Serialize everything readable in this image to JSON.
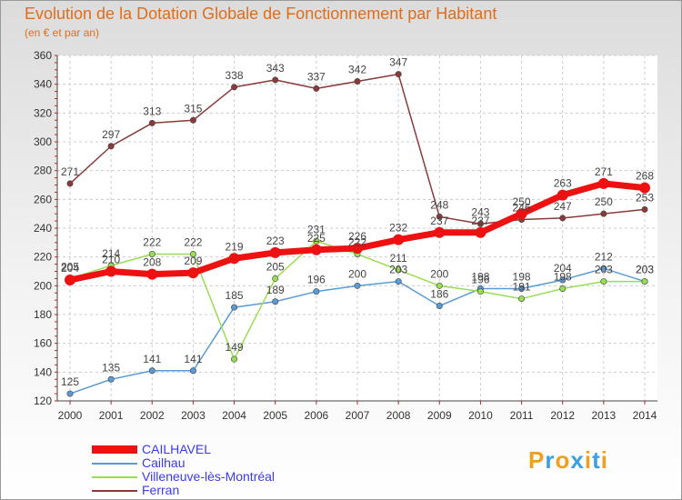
{
  "chart_data": {
    "type": "line",
    "title": "Evolution de la Dotation Globale de Fonctionnement par Habitant",
    "subtitle": "(en € et par an)",
    "xlabel": "",
    "ylabel": "",
    "ylim": [
      120,
      360
    ],
    "yticks": [
      120,
      140,
      160,
      180,
      200,
      220,
      240,
      260,
      280,
      300,
      320,
      340,
      360
    ],
    "categories": [
      "2000",
      "2001",
      "2002",
      "2003",
      "2004",
      "2005",
      "2006",
      "2007",
      "2008",
      "2009",
      "2010",
      "2011",
      "2012",
      "2013",
      "2014"
    ],
    "grid": true,
    "legend_position": "bottom-left",
    "series": [
      {
        "name": "CAILHAVEL",
        "color": "#ee1111",
        "emphasis": true,
        "values": [
          204,
          210,
          208,
          209,
          219,
          223,
          225,
          226,
          232,
          237,
          237,
          250,
          263,
          271,
          268
        ]
      },
      {
        "name": "Cailhau",
        "color": "#5b9bd5",
        "emphasis": false,
        "values": [
          125,
          135,
          141,
          141,
          185,
          189,
          196,
          200,
          203,
          186,
          198,
          198,
          204,
          212,
          203
        ]
      },
      {
        "name": "Villeneuve-lès-Montréal",
        "color": "#99dd55",
        "emphasis": false,
        "values": [
          205,
          214,
          222,
          222,
          149,
          205,
          231,
          222,
          211,
          200,
          196,
          191,
          198,
          203,
          203
        ]
      },
      {
        "name": "Ferran",
        "color": "#8b3a3a",
        "emphasis": false,
        "values": [
          271,
          297,
          313,
          315,
          338,
          343,
          337,
          342,
          347,
          248,
          243,
          246,
          247,
          250,
          253
        ]
      }
    ]
  },
  "logo": {
    "letters": [
      "P",
      "r",
      "o",
      "x",
      "i",
      "t",
      "i"
    ],
    "colors": [
      "#f0a020",
      "#3aa0e0",
      "#f0a020",
      "#3aa0e0",
      "#f0a020",
      "#3aa0e0",
      "#f0a020"
    ]
  }
}
